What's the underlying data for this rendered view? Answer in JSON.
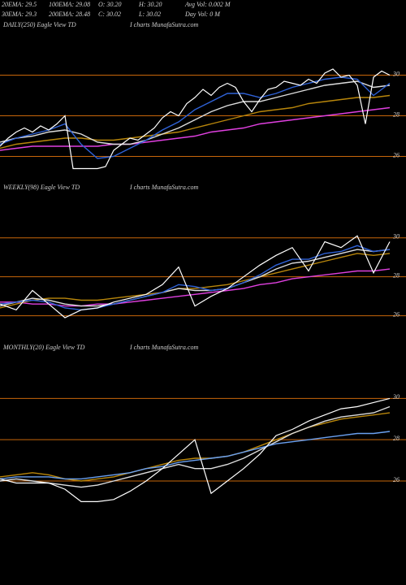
{
  "header": {
    "row1": [
      "20EMA: 29.5",
      "100EMA: 29.08",
      "O: 30.20",
      "H: 30.20",
      "Avg Vol: 0.002  M"
    ],
    "row2": [
      "30EMA: 29.3",
      "200EMA: 28.48",
      "C: 30.02",
      "L: 30.02",
      "Day Vol: 0  M"
    ]
  },
  "chart_data": [
    {
      "type": "line",
      "title": "DAILY(250) Eagle  View  TD",
      "subtitle": "I charts MunafaSutra.com",
      "ylim": [
        25.1,
        32.1
      ],
      "yticks": [
        26,
        28,
        30
      ],
      "grid": true,
      "grid_color": "#c8660a",
      "series": [
        {
          "color": "#ffffff",
          "values": [
            26.5,
            26.9,
            27.2,
            27.4,
            27.2,
            27.5,
            27.3,
            27.6,
            28.0,
            25.4,
            25.4,
            25.4,
            25.4,
            25.5,
            26.3,
            26.6,
            26.9,
            26.8,
            27.1,
            27.4,
            27.9,
            28.2,
            28.0,
            28.6,
            28.9,
            29.3,
            29.0,
            29.4,
            29.6,
            29.4,
            28.7,
            28.2,
            28.8,
            29.3,
            29.4,
            29.7,
            29.6,
            29.5,
            29.8,
            29.6,
            30.1,
            30.3,
            29.9,
            30.0,
            29.5,
            27.6,
            29.9,
            30.2,
            30.0
          ]
        },
        {
          "color": "#2f62d8",
          "values": [
            26.6,
            26.9,
            27.1,
            27.3,
            27.6,
            26.6,
            25.9,
            26.0,
            26.4,
            26.8,
            27.3,
            27.7,
            28.3,
            28.7,
            29.1,
            29.1,
            28.9,
            29.1,
            29.4,
            29.6,
            29.8,
            29.9,
            29.8,
            29.0,
            29.6
          ]
        },
        {
          "color": "#dddddd",
          "values": [
            26.7,
            26.9,
            27.0,
            27.2,
            27.3,
            27.1,
            26.7,
            26.6,
            26.6,
            26.8,
            27.1,
            27.4,
            27.8,
            28.2,
            28.5,
            28.7,
            28.7,
            28.9,
            29.1,
            29.3,
            29.5,
            29.6,
            29.7,
            29.4,
            29.5
          ]
        },
        {
          "color": "#b8860b",
          "values": [
            26.4,
            26.6,
            26.7,
            26.8,
            26.9,
            26.9,
            26.8,
            26.8,
            26.9,
            27.0,
            27.1,
            27.2,
            27.4,
            27.6,
            27.8,
            28.0,
            28.2,
            28.3,
            28.4,
            28.6,
            28.7,
            28.8,
            28.9,
            28.9,
            29.0
          ]
        },
        {
          "color": "#e040e0",
          "values": [
            26.3,
            26.4,
            26.5,
            26.5,
            26.5,
            26.5,
            26.5,
            26.6,
            26.6,
            26.7,
            26.8,
            26.9,
            27.0,
            27.2,
            27.3,
            27.4,
            27.6,
            27.7,
            27.8,
            27.9,
            28.0,
            28.1,
            28.2,
            28.3,
            28.4
          ]
        }
      ]
    },
    {
      "type": "line",
      "title": "WEEKLY(98) Eagle  View  TD",
      "subtitle": "I charts MunafaSutra.com",
      "ylim": [
        24.9,
        32.2
      ],
      "yticks": [
        26,
        28,
        30
      ],
      "grid": true,
      "grid_color": "#c8660a",
      "series": [
        {
          "color": "#ffffff",
          "values": [
            26.6,
            26.3,
            27.3,
            26.6,
            25.9,
            26.3,
            26.4,
            26.7,
            26.9,
            27.1,
            27.6,
            28.5,
            26.5,
            27.0,
            27.4,
            28.0,
            28.6,
            29.1,
            29.5,
            28.3,
            29.8,
            29.5,
            30.1,
            28.2,
            29.8
          ]
        },
        {
          "color": "#2f62d8",
          "values": [
            26.6,
            26.7,
            26.8,
            26.7,
            26.4,
            26.3,
            26.4,
            26.6,
            26.8,
            27.0,
            27.2,
            27.6,
            27.5,
            27.3,
            27.4,
            27.7,
            28.1,
            28.6,
            28.9,
            28.9,
            29.2,
            29.3,
            29.6,
            29.3,
            29.4
          ]
        },
        {
          "color": "#dddddd",
          "values": [
            26.5,
            26.7,
            26.9,
            26.8,
            26.6,
            26.5,
            26.5,
            26.6,
            26.8,
            27.0,
            27.2,
            27.4,
            27.3,
            27.3,
            27.4,
            27.7,
            28.0,
            28.4,
            28.7,
            28.8,
            29.0,
            29.2,
            29.4,
            29.3,
            29.4
          ]
        },
        {
          "color": "#b8860b",
          "values": [
            26.4,
            26.6,
            26.8,
            26.9,
            26.9,
            26.8,
            26.8,
            26.9,
            27.0,
            27.1,
            27.2,
            27.4,
            27.4,
            27.5,
            27.6,
            27.8,
            28.0,
            28.2,
            28.4,
            28.6,
            28.8,
            29.0,
            29.2,
            29.1,
            29.2
          ]
        },
        {
          "color": "#e040e0",
          "values": [
            26.7,
            26.7,
            26.6,
            26.6,
            26.5,
            26.5,
            26.6,
            26.6,
            26.7,
            26.8,
            26.9,
            27.0,
            27.1,
            27.2,
            27.3,
            27.4,
            27.6,
            27.7,
            27.9,
            28.0,
            28.1,
            28.2,
            28.3,
            28.3,
            28.4
          ]
        }
      ]
    },
    {
      "type": "line",
      "title": "MONTHLY(20) Eagle  View  TD",
      "subtitle": "I charts MunafaSutra.com",
      "ylim": [
        24.7,
        32.1
      ],
      "yticks": [
        26,
        28,
        30
      ],
      "grid": true,
      "grid_color": "#c8660a",
      "series": [
        {
          "color": "#ffffff",
          "values": [
            26.1,
            25.9,
            25.9,
            25.9,
            25.6,
            25.0,
            25.0,
            25.1,
            25.5,
            26.0,
            26.6,
            27.3,
            28.0,
            25.4,
            26.0,
            26.6,
            27.3,
            28.2,
            28.5,
            28.9,
            29.2,
            29.5,
            29.6,
            29.8,
            30.0
          ]
        },
        {
          "color": "#6aa0f0",
          "values": [
            26.1,
            26.2,
            26.2,
            26.2,
            26.1,
            26.1,
            26.2,
            26.3,
            26.4,
            26.6,
            26.7,
            26.9,
            27.0,
            27.1,
            27.2,
            27.4,
            27.6,
            27.8,
            27.9,
            28.0,
            28.1,
            28.2,
            28.3,
            28.3,
            28.4
          ]
        },
        {
          "color": "#dddddd",
          "values": [
            26.0,
            26.1,
            26.0,
            25.9,
            25.8,
            25.7,
            25.8,
            26.0,
            26.2,
            26.4,
            26.6,
            26.8,
            26.6,
            26.6,
            26.8,
            27.1,
            27.5,
            27.9,
            28.3,
            28.6,
            28.9,
            29.1,
            29.2,
            29.3,
            29.6
          ]
        },
        {
          "color": "#b8860b",
          "values": [
            26.2,
            26.3,
            26.4,
            26.3,
            26.1,
            26.0,
            26.1,
            26.2,
            26.4,
            26.6,
            26.8,
            27.0,
            27.1,
            27.1,
            27.2,
            27.4,
            27.7,
            28.0,
            28.3,
            28.6,
            28.8,
            29.0,
            29.1,
            29.2,
            29.3
          ]
        }
      ]
    }
  ]
}
